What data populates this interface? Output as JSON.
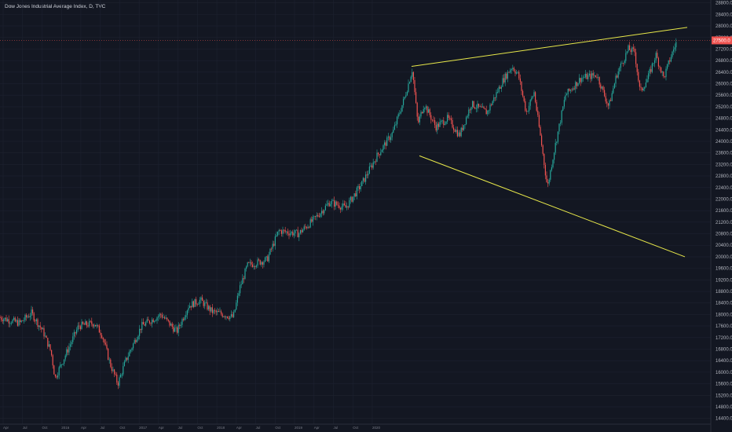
{
  "title": "Dow Jones Industrial Average Index, D, TVC",
  "colors": {
    "background": "#131722",
    "grid": "#1e2230",
    "up": "#26a69a",
    "down": "#ef5350",
    "trendline": "#e8e84a",
    "price_label": "#ef5350"
  },
  "chart_data": {
    "type": "candlestick",
    "ylim": [
      14200,
      28900
    ],
    "y_ticks": [
      "14400.0",
      "14800.0",
      "15200.0",
      "15600.0",
      "16000.0",
      "16400.0",
      "16800.0",
      "17200.0",
      "17600.0",
      "18000.0",
      "18400.0",
      "18800.0",
      "19200.0",
      "19600.0",
      "20000.0",
      "20400.0",
      "20800.0",
      "21200.0",
      "21600.0",
      "22000.0",
      "22400.0",
      "22800.0",
      "23200.0",
      "23600.0",
      "24000.0",
      "24400.0",
      "24800.0",
      "25200.0",
      "25600.0",
      "26000.0",
      "26400.0",
      "26800.0",
      "27200.0",
      "27600.0",
      "28000.0",
      "28400.0",
      "28800.0"
    ],
    "last_price": 27500,
    "last_price_label": "27500.0",
    "anchors": [
      [
        0,
        17900
      ],
      [
        25,
        17700
      ],
      [
        40,
        18050
      ],
      [
        55,
        17400
      ],
      [
        65,
        16700
      ],
      [
        70,
        15800
      ],
      [
        80,
        16400
      ],
      [
        100,
        17600
      ],
      [
        120,
        17700
      ],
      [
        130,
        17300
      ],
      [
        140,
        16300
      ],
      [
        150,
        15600
      ],
      [
        160,
        16400
      ],
      [
        180,
        17600
      ],
      [
        205,
        18000
      ],
      [
        225,
        17400
      ],
      [
        240,
        18300
      ],
      [
        255,
        18500
      ],
      [
        270,
        18100
      ],
      [
        285,
        18000
      ],
      [
        297,
        17900
      ],
      [
        305,
        18900
      ],
      [
        315,
        19700
      ],
      [
        340,
        19900
      ],
      [
        355,
        20900
      ],
      [
        380,
        20800
      ],
      [
        400,
        21300
      ],
      [
        420,
        21900
      ],
      [
        440,
        21700
      ],
      [
        460,
        22500
      ],
      [
        480,
        23500
      ],
      [
        500,
        24300
      ],
      [
        515,
        25500
      ],
      [
        525,
        26500
      ],
      [
        532,
        24600
      ],
      [
        540,
        25300
      ],
      [
        555,
        24500
      ],
      [
        570,
        24800
      ],
      [
        585,
        24200
      ],
      [
        600,
        25300
      ],
      [
        620,
        25000
      ],
      [
        640,
        26100
      ],
      [
        652,
        26600
      ],
      [
        660,
        26300
      ],
      [
        670,
        25000
      ],
      [
        680,
        25700
      ],
      [
        690,
        23800
      ],
      [
        697,
        22400
      ],
      [
        705,
        23600
      ],
      [
        720,
        25600
      ],
      [
        740,
        26200
      ],
      [
        760,
        26300
      ],
      [
        775,
        25200
      ],
      [
        785,
        26300
      ],
      [
        800,
        27200
      ],
      [
        808,
        27100
      ],
      [
        815,
        25700
      ],
      [
        825,
        26200
      ],
      [
        835,
        27000
      ],
      [
        845,
        26200
      ],
      [
        855,
        27000
      ],
      [
        862,
        27500
      ]
    ],
    "trendlines": [
      {
        "from": [
          524,
          26600
        ],
        "to": [
          875,
          27950
        ]
      },
      {
        "from": [
          534,
          23500
        ],
        "to": [
          872,
          20000
        ]
      }
    ]
  },
  "x_axis_labels": [
    "Apr",
    "Jul",
    "Oct",
    "2016",
    "Apr",
    "Jul",
    "Oct",
    "2017",
    "Apr",
    "Jul",
    "Oct",
    "2018",
    "Apr",
    "Jul",
    "Oct",
    "2019",
    "Apr",
    "Jul",
    "Oct",
    "2020"
  ]
}
